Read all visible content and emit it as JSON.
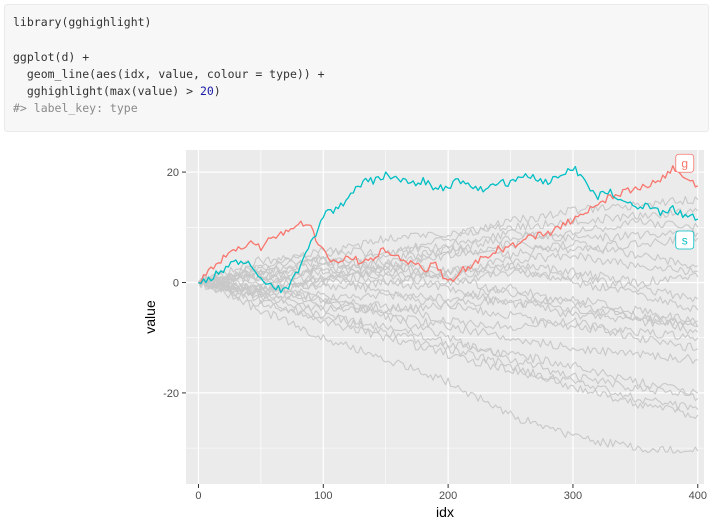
{
  "code": {
    "lines": [
      {
        "text": "library(gghighlight)",
        "comment": false
      },
      {
        "text": "",
        "comment": false
      },
      {
        "text": "ggplot(d) +",
        "comment": false
      },
      {
        "text": "  geom_line(aes(idx, value, colour = type)) +",
        "comment": false
      },
      {
        "text": "  gghighlight(max(value) > 20)",
        "comment": false,
        "number": "20"
      },
      {
        "text": "#> label_key: type",
        "comment": true
      }
    ]
  },
  "chart_data": {
    "type": "line",
    "title": "",
    "xlabel": "idx",
    "ylabel": "value",
    "xlim": [
      -10,
      405
    ],
    "ylim": [
      -36.5,
      24
    ],
    "x_ticks": [
      0,
      100,
      200,
      300,
      400
    ],
    "x_tick_labels": [
      "0",
      "100",
      "200",
      "300",
      "400"
    ],
    "y_ticks": [
      -20,
      0,
      20
    ],
    "y_tick_labels": [
      "-20",
      "0",
      "20"
    ],
    "grid": true,
    "panel_background": "#ebebeb",
    "highlight_colors": {
      "g": "#f8766d",
      "s": "#00bfc4"
    },
    "background_series_color": "#c8c8c8",
    "series": [
      {
        "name": "g",
        "highlighted": true,
        "color": "#f8766d",
        "x": [
          0,
          10,
          20,
          30,
          40,
          50,
          60,
          70,
          80,
          90,
          100,
          110,
          120,
          130,
          140,
          150,
          160,
          170,
          180,
          190,
          200,
          210,
          220,
          230,
          240,
          250,
          260,
          270,
          280,
          290,
          300,
          310,
          320,
          330,
          340,
          350,
          360,
          370,
          380,
          390,
          400
        ],
        "y": [
          0,
          2.5,
          4.5,
          5.5,
          7,
          6.5,
          8,
          9,
          11,
          10,
          5.5,
          3.5,
          5,
          3.5,
          4.5,
          6,
          4.5,
          3.5,
          2.5,
          3,
          0,
          2,
          3.5,
          4.5,
          6,
          6.5,
          7.5,
          8.5,
          9,
          10,
          11.5,
          12.5,
          14,
          15.5,
          16.5,
          17,
          17.5,
          18.5,
          20.5,
          19,
          17.5
        ]
      },
      {
        "name": "s",
        "highlighted": true,
        "color": "#00bfc4",
        "x": [
          0,
          10,
          20,
          30,
          40,
          50,
          60,
          70,
          80,
          90,
          100,
          110,
          120,
          130,
          140,
          150,
          160,
          170,
          180,
          190,
          200,
          210,
          220,
          230,
          240,
          250,
          260,
          270,
          280,
          290,
          300,
          310,
          320,
          330,
          340,
          350,
          360,
          370,
          380,
          390,
          400
        ],
        "y": [
          0,
          1,
          2,
          4,
          3.5,
          1,
          -1,
          -1.5,
          2,
          7,
          12,
          13.5,
          15,
          18,
          18.5,
          19.5,
          19,
          17.5,
          18.5,
          17,
          17.5,
          18.5,
          17.5,
          17,
          18.5,
          18,
          19.5,
          19,
          18,
          19.5,
          21,
          18,
          15.5,
          16.5,
          15,
          13.5,
          14,
          12.5,
          13.5,
          12,
          11.5
        ]
      },
      {
        "name": "",
        "highlighted": false,
        "x": [
          0,
          50,
          100,
          150,
          200,
          250,
          300,
          350,
          400
        ],
        "y": [
          0,
          4,
          5,
          8,
          9,
          10,
          11,
          12,
          13
        ]
      },
      {
        "name": "",
        "highlighted": false,
        "x": [
          0,
          50,
          100,
          150,
          200,
          250,
          300,
          350,
          400
        ],
        "y": [
          0,
          2,
          0,
          3,
          6,
          8,
          9,
          11,
          10
        ]
      },
      {
        "name": "",
        "highlighted": false,
        "x": [
          0,
          50,
          100,
          150,
          200,
          250,
          300,
          350,
          400
        ],
        "y": [
          0,
          -1,
          3,
          5,
          7,
          9,
          8,
          8.5,
          9
        ]
      },
      {
        "name": "",
        "highlighted": false,
        "x": [
          0,
          50,
          100,
          150,
          200,
          250,
          300,
          350,
          400
        ],
        "y": [
          0,
          3,
          4,
          2,
          5,
          7,
          6,
          7,
          8
        ]
      },
      {
        "name": "",
        "highlighted": false,
        "x": [
          0,
          50,
          100,
          150,
          200,
          250,
          300,
          350,
          400
        ],
        "y": [
          0,
          1,
          2,
          4,
          6,
          5,
          7,
          5,
          3
        ]
      },
      {
        "name": "",
        "highlighted": false,
        "x": [
          0,
          50,
          100,
          150,
          200,
          250,
          300,
          350,
          400
        ],
        "y": [
          0,
          -2,
          1,
          3,
          2,
          4,
          5,
          3,
          2
        ]
      },
      {
        "name": "",
        "highlighted": false,
        "x": [
          0,
          50,
          100,
          150,
          200,
          250,
          300,
          350,
          400
        ],
        "y": [
          0,
          2,
          3,
          1,
          0,
          2,
          1,
          -1,
          -3
        ]
      },
      {
        "name": "",
        "highlighted": false,
        "x": [
          0,
          50,
          100,
          150,
          200,
          250,
          300,
          350,
          400
        ],
        "y": [
          0,
          1,
          -1,
          0,
          2,
          3,
          0,
          -2,
          -5
        ]
      },
      {
        "name": "",
        "highlighted": false,
        "x": [
          0,
          50,
          100,
          150,
          200,
          250,
          300,
          350,
          400
        ],
        "y": [
          0,
          -1,
          -3,
          -2,
          -4,
          -3,
          -6,
          -7,
          -8
        ]
      },
      {
        "name": "",
        "highlighted": false,
        "x": [
          0,
          50,
          100,
          150,
          200,
          250,
          300,
          350,
          400
        ],
        "y": [
          0,
          -3,
          -2,
          -5,
          -4,
          -6,
          -8,
          -9,
          -10
        ]
      },
      {
        "name": "",
        "highlighted": false,
        "x": [
          0,
          50,
          100,
          150,
          200,
          250,
          300,
          350,
          400
        ],
        "y": [
          0,
          -2,
          -5,
          -4,
          -7,
          -8,
          -7,
          -10,
          -12
        ]
      },
      {
        "name": "",
        "highlighted": false,
        "x": [
          0,
          50,
          100,
          150,
          200,
          250,
          300,
          350,
          400
        ],
        "y": [
          0,
          -1,
          -4,
          -6,
          -8,
          -10,
          -12,
          -13,
          -14
        ]
      },
      {
        "name": "",
        "highlighted": false,
        "x": [
          0,
          50,
          100,
          150,
          200,
          250,
          300,
          350,
          400
        ],
        "y": [
          0,
          -4,
          -6,
          -8,
          -11,
          -13,
          -15,
          -18,
          -20
        ]
      },
      {
        "name": "",
        "highlighted": false,
        "x": [
          0,
          50,
          100,
          150,
          200,
          250,
          300,
          350,
          400
        ],
        "y": [
          0,
          -3,
          -7,
          -10,
          -13,
          -16,
          -18,
          -21,
          -23
        ]
      },
      {
        "name": "",
        "highlighted": false,
        "x": [
          0,
          50,
          100,
          150,
          200,
          250,
          300,
          350,
          400
        ],
        "y": [
          0,
          -5,
          -10,
          -14,
          -18,
          -24,
          -28,
          -30,
          -30.5
        ]
      },
      {
        "name": "",
        "highlighted": false,
        "x": [
          0,
          50,
          100,
          150,
          200,
          250,
          300,
          350,
          400
        ],
        "y": [
          0,
          -2,
          -6,
          -9,
          -12,
          -15,
          -19,
          -22,
          -24
        ]
      },
      {
        "name": "",
        "highlighted": false,
        "x": [
          0,
          50,
          100,
          150,
          200,
          250,
          300,
          350,
          400
        ],
        "y": [
          0,
          0,
          -3,
          -6,
          -10,
          -14,
          -17,
          -19,
          -21
        ]
      },
      {
        "name": "",
        "highlighted": false,
        "x": [
          0,
          50,
          100,
          150,
          200,
          250,
          300,
          350,
          400
        ],
        "y": [
          0,
          1,
          2,
          0,
          -1,
          -4,
          -3,
          -5,
          -7
        ]
      },
      {
        "name": "",
        "highlighted": false,
        "x": [
          0,
          50,
          100,
          150,
          200,
          250,
          300,
          350,
          400
        ],
        "y": [
          0,
          2,
          4,
          3,
          1,
          -2,
          -5,
          -6,
          -8
        ]
      },
      {
        "name": "",
        "highlighted": false,
        "x": [
          0,
          50,
          100,
          150,
          200,
          250,
          300,
          350,
          400
        ],
        "y": [
          0,
          -1,
          1,
          -2,
          -3,
          -1,
          -4,
          -6,
          -9
        ]
      },
      {
        "name": "",
        "highlighted": false,
        "x": [
          0,
          50,
          100,
          150,
          200,
          250,
          300,
          350,
          400
        ],
        "y": [
          0,
          3,
          6,
          5,
          8,
          11,
          13,
          14,
          15
        ]
      },
      {
        "name": "",
        "highlighted": false,
        "x": [
          0,
          50,
          100,
          150,
          200,
          250,
          300,
          350,
          400
        ],
        "y": [
          0,
          -2,
          0,
          2,
          1,
          3,
          2,
          0,
          1
        ]
      }
    ]
  }
}
